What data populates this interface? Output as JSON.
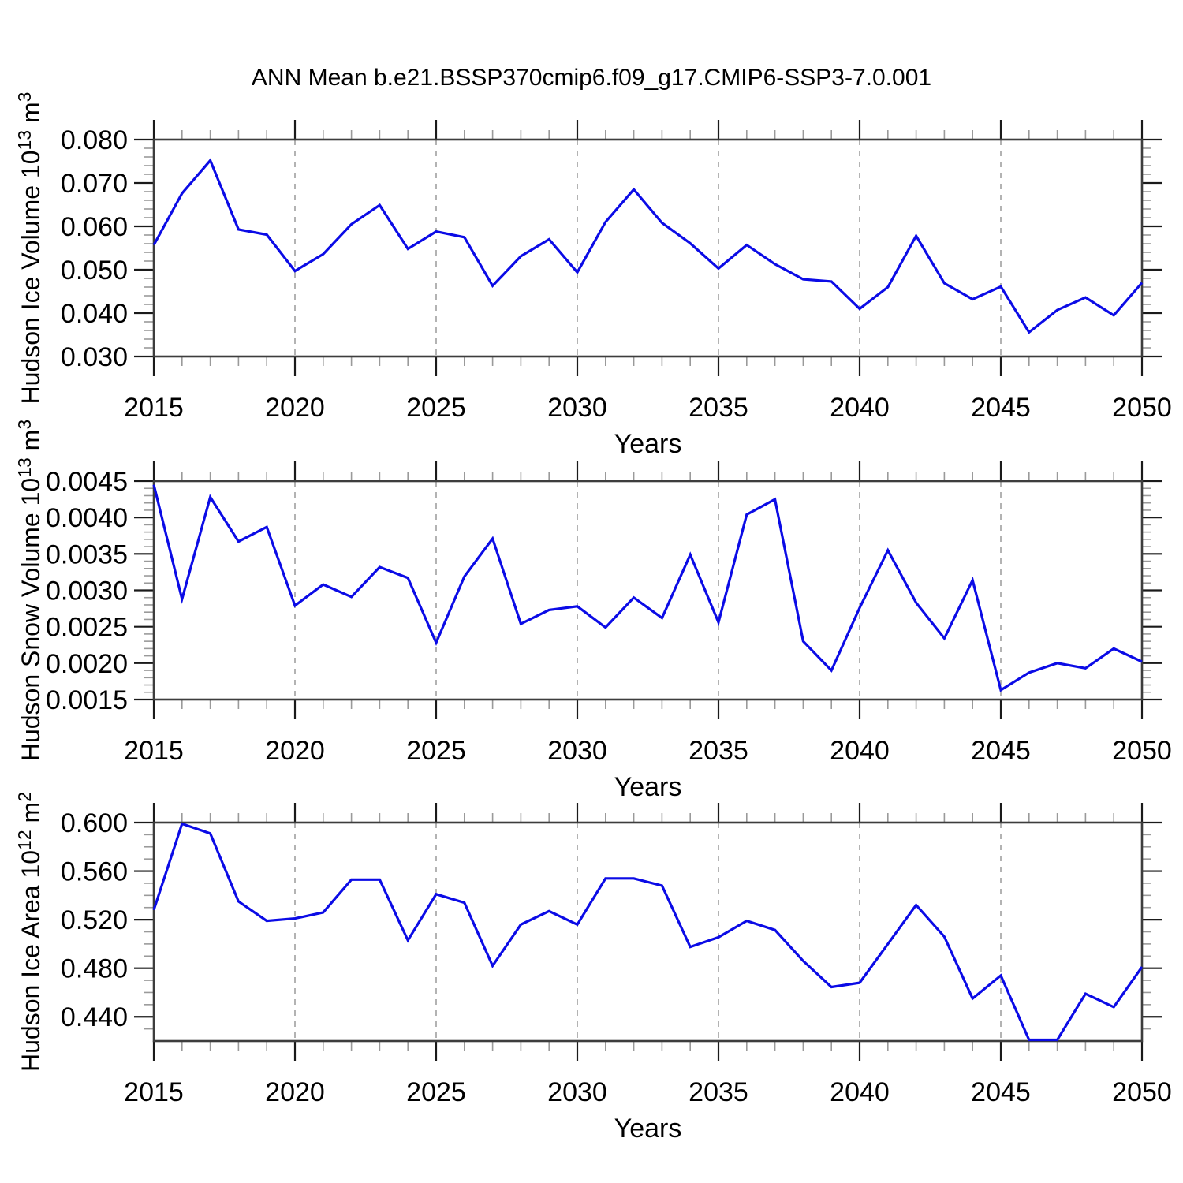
{
  "title": "ANN Mean b.e21.BSSP370cmip6.f09_g17.CMIP6-SSP3-7.0.001",
  "figure": {
    "background": "#ffffff",
    "line_color": "#0B0BE6",
    "grid_color": "#ABABAB",
    "box_color": "#3D3D3D",
    "major_tick_color": "#1A1A1A",
    "minor_tick_color": "#9A9A9A",
    "text_color": "#000000"
  },
  "chart_data": [
    {
      "type": "line",
      "ylabel": "Hudson Ice Volume 10^13 m^3",
      "ylabel_segments": [
        {
          "text": "Hudson Ice Volume 10"
        },
        {
          "text": "13",
          "sup": true
        },
        {
          "text": " m"
        },
        {
          "text": "3",
          "sup": true
        }
      ],
      "xlabel": "Years",
      "x": [
        2015,
        2016,
        2017,
        2018,
        2019,
        2020,
        2021,
        2022,
        2023,
        2024,
        2025,
        2026,
        2027,
        2028,
        2029,
        2030,
        2031,
        2032,
        2033,
        2034,
        2035,
        2036,
        2037,
        2038,
        2039,
        2040,
        2041,
        2042,
        2043,
        2044,
        2045,
        2046,
        2047,
        2048,
        2049,
        2050
      ],
      "values": [
        0.0557,
        0.0676,
        0.0752,
        0.0593,
        0.0581,
        0.0497,
        0.0536,
        0.0605,
        0.0649,
        0.0548,
        0.0588,
        0.0575,
        0.0463,
        0.0531,
        0.057,
        0.0494,
        0.061,
        0.0685,
        0.0608,
        0.0561,
        0.0503,
        0.0557,
        0.0513,
        0.0478,
        0.0473,
        0.041,
        0.046,
        0.0578,
        0.0469,
        0.0432,
        0.0461,
        0.0356,
        0.0407,
        0.0436,
        0.0395,
        0.047
      ],
      "ylim": [
        0.03,
        0.08
      ],
      "ytick_values": [
        0.08,
        0.07,
        0.06,
        0.05,
        0.04,
        0.03
      ],
      "ytick_labels": [
        "0.080",
        "0.070",
        "0.060",
        "0.050",
        "0.040",
        "0.030"
      ],
      "y_minor_step": 0.002,
      "xlim": [
        2015,
        2050
      ],
      "xtick_major": [
        2015,
        2020,
        2025,
        2030,
        2035,
        2040,
        2045,
        2050
      ],
      "xtick_labels": [
        "2015",
        "2020",
        "2025",
        "2030",
        "2035",
        "2040",
        "2045",
        "2050"
      ],
      "x_minor_step": 1,
      "grid_years": [
        2020,
        2025,
        2030,
        2035,
        2040,
        2045
      ],
      "grid": "vertical-dashed",
      "legend": "none"
    },
    {
      "type": "line",
      "ylabel": "Hudson Snow Volume 10^13 m^3",
      "ylabel_segments": [
        {
          "text": "Hudson Snow Volume 10"
        },
        {
          "text": "13",
          "sup": true
        },
        {
          "text": " m"
        },
        {
          "text": "3",
          "sup": true
        }
      ],
      "xlabel": "Years",
      "x": [
        2015,
        2016,
        2017,
        2018,
        2019,
        2020,
        2021,
        2022,
        2023,
        2024,
        2025,
        2026,
        2027,
        2028,
        2029,
        2030,
        2031,
        2032,
        2033,
        2034,
        2035,
        2036,
        2037,
        2038,
        2039,
        2040,
        2041,
        2042,
        2043,
        2044,
        2045,
        2046,
        2047,
        2048,
        2049,
        2050
      ],
      "values": [
        0.00445,
        0.00288,
        0.00428,
        0.00367,
        0.00387,
        0.00279,
        0.00308,
        0.00291,
        0.00332,
        0.00317,
        0.00228,
        0.00319,
        0.00371,
        0.00254,
        0.00273,
        0.00278,
        0.00249,
        0.0029,
        0.00262,
        0.00349,
        0.00256,
        0.00404,
        0.00425,
        0.0023,
        0.0019,
        0.00276,
        0.00355,
        0.00283,
        0.00234,
        0.00314,
        0.00163,
        0.00187,
        0.002,
        0.00193,
        0.0022,
        0.00202
      ],
      "ylim": [
        0.0015,
        0.0045
      ],
      "ytick_values": [
        0.0045,
        0.004,
        0.0035,
        0.003,
        0.0025,
        0.002,
        0.0015
      ],
      "ytick_labels": [
        "0.0045",
        "0.0040",
        "0.0035",
        "0.0030",
        "0.0025",
        "0.0020",
        "0.0015"
      ],
      "y_minor_step": 0.0001,
      "xlim": [
        2015,
        2050
      ],
      "xtick_major": [
        2015,
        2020,
        2025,
        2030,
        2035,
        2040,
        2045,
        2050
      ],
      "xtick_labels": [
        "2015",
        "2020",
        "2025",
        "2030",
        "2035",
        "2040",
        "2045",
        "2050"
      ],
      "x_minor_step": 1,
      "grid_years": [
        2020,
        2025,
        2030,
        2035,
        2040,
        2045
      ],
      "grid": "vertical-dashed",
      "legend": "none"
    },
    {
      "type": "line",
      "ylabel": "Hudson Ice Area 10^12 m^2",
      "ylabel_segments": [
        {
          "text": "Hudson Ice Area 10"
        },
        {
          "text": "12",
          "sup": true
        },
        {
          "text": " m"
        },
        {
          "text": "2",
          "sup": true
        }
      ],
      "xlabel": "Years",
      "x": [
        2015,
        2016,
        2017,
        2018,
        2019,
        2020,
        2021,
        2022,
        2023,
        2024,
        2025,
        2026,
        2027,
        2028,
        2029,
        2030,
        2031,
        2032,
        2033,
        2034,
        2035,
        2036,
        2037,
        2038,
        2039,
        2040,
        2041,
        2042,
        2043,
        2044,
        2045,
        2046,
        2047,
        2048,
        2049,
        2050
      ],
      "values": [
        0.528,
        0.599,
        0.591,
        0.535,
        0.519,
        0.521,
        0.526,
        0.553,
        0.553,
        0.503,
        0.541,
        0.534,
        0.482,
        0.516,
        0.527,
        0.516,
        0.554,
        0.554,
        0.548,
        0.4975,
        0.5055,
        0.519,
        0.5115,
        0.486,
        0.4645,
        0.468,
        0.5,
        0.532,
        0.506,
        0.455,
        0.474,
        0.421,
        0.421,
        0.459,
        0.448,
        0.481
      ],
      "ylim": [
        0.42,
        0.6
      ],
      "ytick_values": [
        0.6,
        0.56,
        0.52,
        0.48,
        0.44
      ],
      "ytick_labels": [
        "0.600",
        "0.560",
        "0.520",
        "0.480",
        "0.440"
      ],
      "y_minor_step": 0.01,
      "xlim": [
        2015,
        2050
      ],
      "xtick_major": [
        2015,
        2020,
        2025,
        2030,
        2035,
        2040,
        2045,
        2050
      ],
      "xtick_labels": [
        "2015",
        "2020",
        "2025",
        "2030",
        "2035",
        "2040",
        "2045",
        "2050"
      ],
      "x_minor_step": 1,
      "grid_years": [
        2020,
        2025,
        2030,
        2035,
        2040,
        2045
      ],
      "grid": "vertical-dashed",
      "legend": "none"
    }
  ]
}
